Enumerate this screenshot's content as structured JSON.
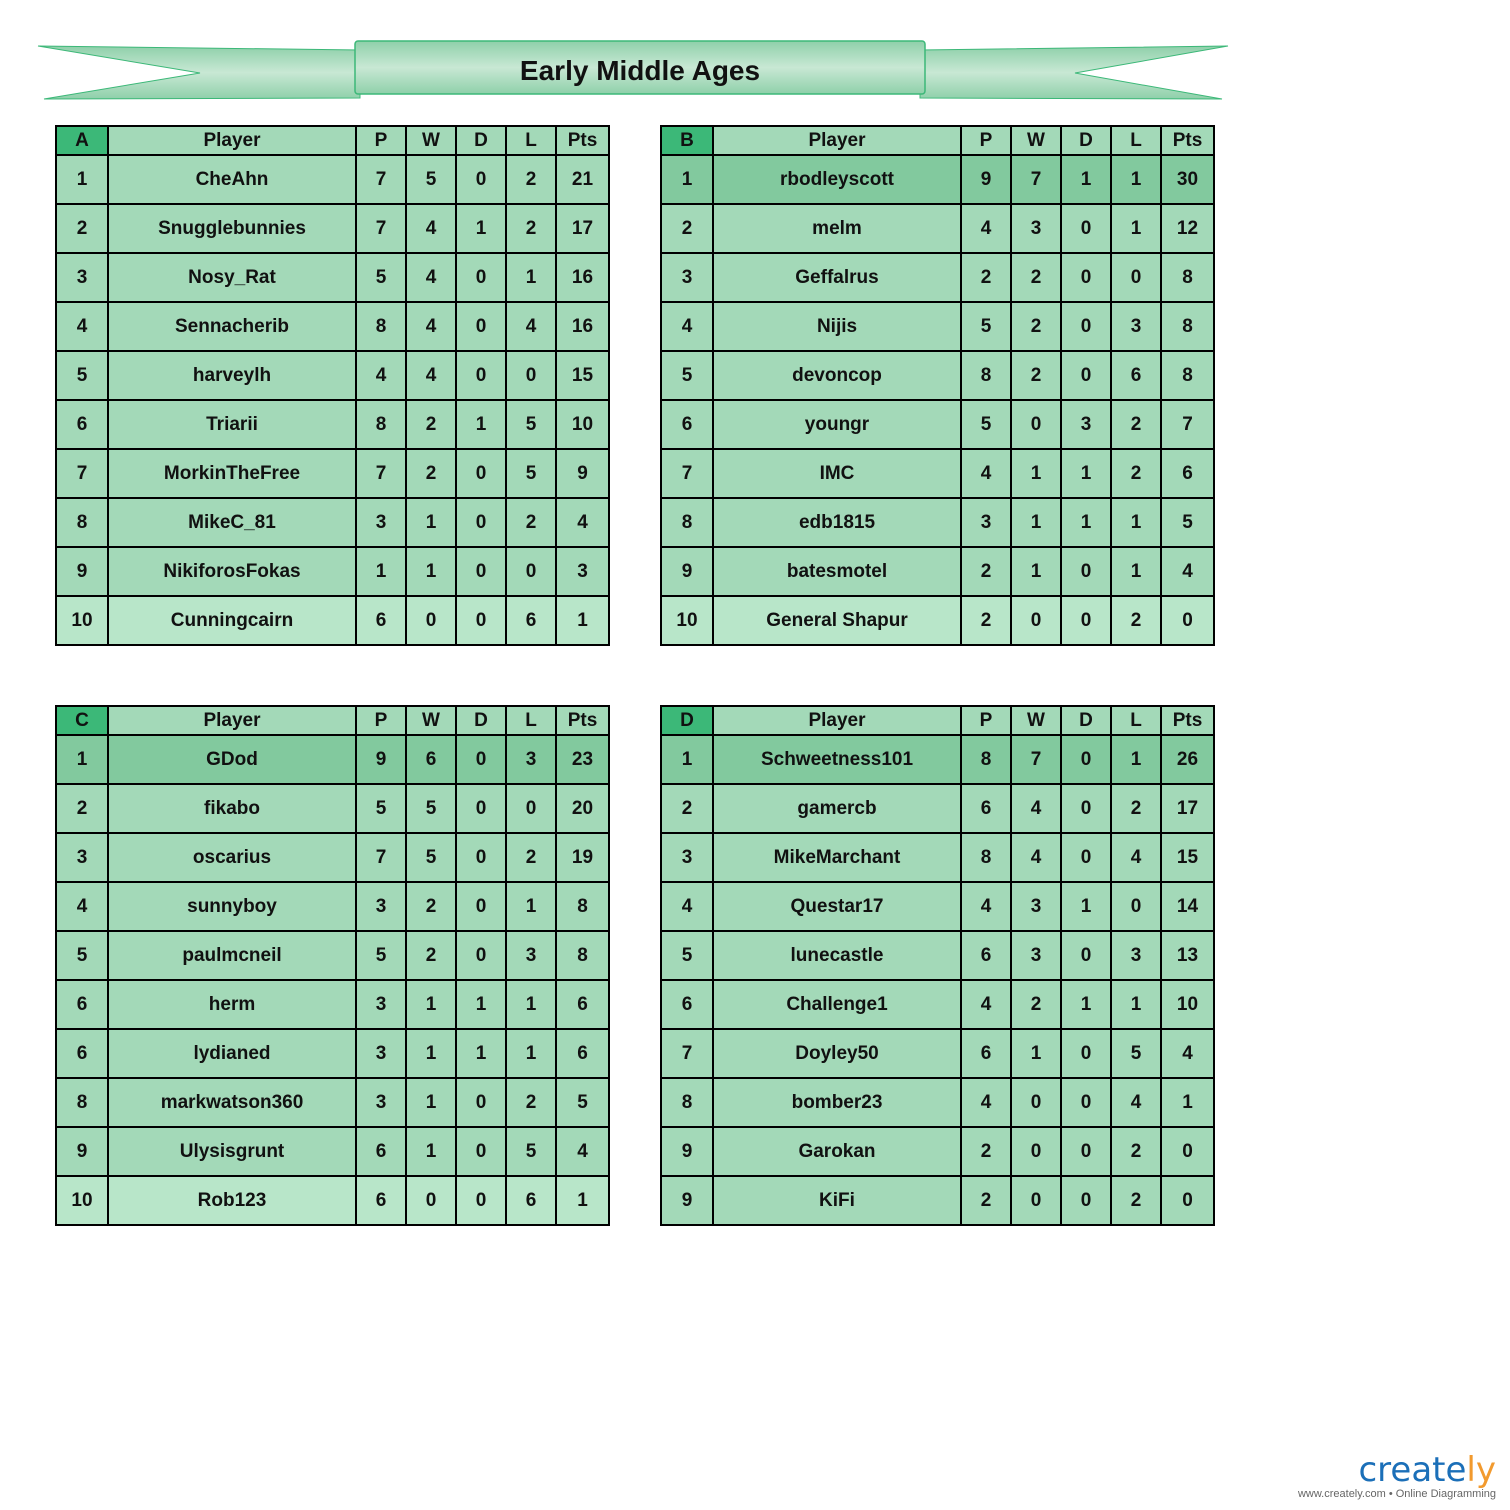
{
  "title": "Early Middle Ages",
  "columns": [
    "Player",
    "P",
    "W",
    "D",
    "L",
    "Pts"
  ],
  "colors": {
    "corner": "#3cb878",
    "cell": "#a3d9b8",
    "leader": "#82c99e",
    "last": "#b8e6c9",
    "banner": "#3cb878"
  },
  "groups": [
    {
      "name": "A",
      "leader_highlight": false,
      "last_highlight": true,
      "rows": [
        [
          "1",
          "CheAhn",
          "7",
          "5",
          "0",
          "2",
          "21"
        ],
        [
          "2",
          "Snugglebunnies",
          "7",
          "4",
          "1",
          "2",
          "17"
        ],
        [
          "3",
          "Nosy_Rat",
          "5",
          "4",
          "0",
          "1",
          "16"
        ],
        [
          "4",
          "Sennacherib",
          "8",
          "4",
          "0",
          "4",
          "16"
        ],
        [
          "5",
          "harveylh",
          "4",
          "4",
          "0",
          "0",
          "15"
        ],
        [
          "6",
          "Triarii",
          "8",
          "2",
          "1",
          "5",
          "10"
        ],
        [
          "7",
          "MorkinTheFree",
          "7",
          "2",
          "0",
          "5",
          "9"
        ],
        [
          "8",
          "MikeC_81",
          "3",
          "1",
          "0",
          "2",
          "4"
        ],
        [
          "9",
          "NikiforosFokas",
          "1",
          "1",
          "0",
          "0",
          "3"
        ],
        [
          "10",
          "Cunningcairn",
          "6",
          "0",
          "0",
          "6",
          "1"
        ]
      ]
    },
    {
      "name": "B",
      "leader_highlight": true,
      "last_highlight": true,
      "rows": [
        [
          "1",
          "rbodleyscott",
          "9",
          "7",
          "1",
          "1",
          "30"
        ],
        [
          "2",
          "melm",
          "4",
          "3",
          "0",
          "1",
          "12"
        ],
        [
          "3",
          "Geffalrus",
          "2",
          "2",
          "0",
          "0",
          "8"
        ],
        [
          "4",
          "Nijis",
          "5",
          "2",
          "0",
          "3",
          "8"
        ],
        [
          "5",
          "devoncop",
          "8",
          "2",
          "0",
          "6",
          "8"
        ],
        [
          "6",
          "youngr",
          "5",
          "0",
          "3",
          "2",
          "7"
        ],
        [
          "7",
          "IMC",
          "4",
          "1",
          "1",
          "2",
          "6"
        ],
        [
          "8",
          "edb1815",
          "3",
          "1",
          "1",
          "1",
          "5"
        ],
        [
          "9",
          "batesmotel",
          "2",
          "1",
          "0",
          "1",
          "4"
        ],
        [
          "10",
          "General Shapur",
          "2",
          "0",
          "0",
          "2",
          "0"
        ]
      ]
    },
    {
      "name": "C",
      "leader_highlight": true,
      "last_highlight": true,
      "rows": [
        [
          "1",
          "GDod",
          "9",
          "6",
          "0",
          "3",
          "23"
        ],
        [
          "2",
          "fikabo",
          "5",
          "5",
          "0",
          "0",
          "20"
        ],
        [
          "3",
          "oscarius",
          "7",
          "5",
          "0",
          "2",
          "19"
        ],
        [
          "4",
          "sunnyboy",
          "3",
          "2",
          "0",
          "1",
          "8"
        ],
        [
          "5",
          "paulmcneil",
          "5",
          "2",
          "0",
          "3",
          "8"
        ],
        [
          "6",
          "herm",
          "3",
          "1",
          "1",
          "1",
          "6"
        ],
        [
          "6",
          "lydianed",
          "3",
          "1",
          "1",
          "1",
          "6"
        ],
        [
          "8",
          "markwatson360",
          "3",
          "1",
          "0",
          "2",
          "5"
        ],
        [
          "9",
          "Ulysisgrunt",
          "6",
          "1",
          "0",
          "5",
          "4"
        ],
        [
          "10",
          "Rob123",
          "6",
          "0",
          "0",
          "6",
          "1"
        ]
      ]
    },
    {
      "name": "D",
      "leader_highlight": true,
      "last_highlight": false,
      "rows": [
        [
          "1",
          "Schweetness101",
          "8",
          "7",
          "0",
          "1",
          "26"
        ],
        [
          "2",
          "gamercb",
          "6",
          "4",
          "0",
          "2",
          "17"
        ],
        [
          "3",
          "MikeMarchant",
          "8",
          "4",
          "0",
          "4",
          "15"
        ],
        [
          "4",
          "Questar17",
          "4",
          "3",
          "1",
          "0",
          "14"
        ],
        [
          "5",
          "lunecastle",
          "6",
          "3",
          "0",
          "3",
          "13"
        ],
        [
          "6",
          "Challenge1",
          "4",
          "2",
          "1",
          "1",
          "10"
        ],
        [
          "7",
          "Doyley50",
          "6",
          "1",
          "0",
          "5",
          "4"
        ],
        [
          "8",
          "bomber23",
          "4",
          "0",
          "0",
          "4",
          "1"
        ],
        [
          "9",
          "Garokan",
          "2",
          "0",
          "0",
          "2",
          "0"
        ],
        [
          "9",
          "KiFi",
          "2",
          "0",
          "0",
          "2",
          "0"
        ]
      ]
    }
  ],
  "logo": {
    "brand": "creately",
    "tagline": "www.creately.com • Online Diagramming"
  }
}
